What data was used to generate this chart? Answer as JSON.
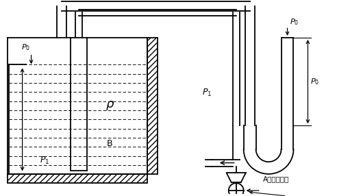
{
  "bg": "#ffffff",
  "lc": "#000000",
  "figsize": [
    4.92,
    2.86
  ],
  "dpi": 100,
  "lw": 1.3,
  "thin": 0.7
}
